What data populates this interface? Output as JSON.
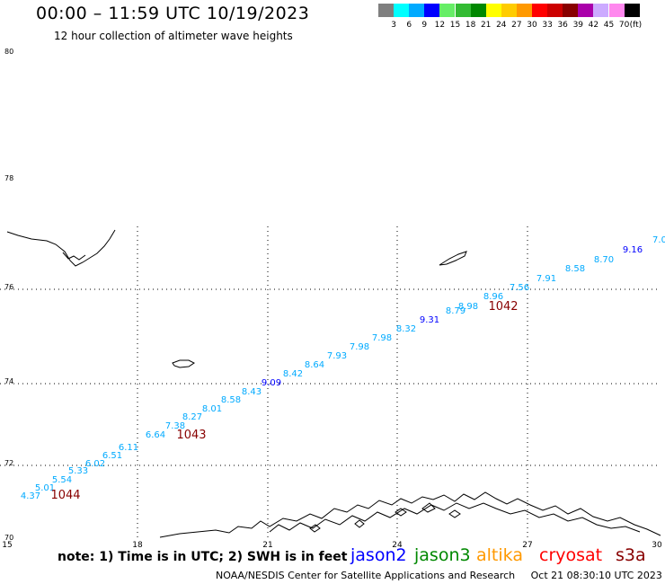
{
  "title": "00:00 – 11:59 UTC 10/19/2023",
  "subtitle": "12 hour collection of altimeter wave heights",
  "color_scale": {
    "colors": [
      "#7f7f7f",
      "#00ffff",
      "#00aaff",
      "#0000ff",
      "#66ee66",
      "#33bb33",
      "#008800",
      "#ffff00",
      "#ffcc00",
      "#ff9900",
      "#ff0000",
      "#cc0000",
      "#880000",
      "#aa00aa",
      "#ccaaff",
      "#ff88ee",
      "#000000"
    ],
    "labels": [
      "3",
      "6",
      "9",
      "12",
      "15",
      "18",
      "21",
      "24",
      "27",
      "30",
      "33",
      "36",
      "39",
      "42",
      "45",
      "70"
    ],
    "unit": "(ft)"
  },
  "map": {
    "lat_labels": [
      "80",
      "78",
      "76",
      "74",
      "72",
      "70"
    ],
    "lon_labels": [
      "15",
      "18",
      "21",
      "24",
      "27",
      "30"
    ],
    "swh_color_default": "#00aaff",
    "swh_color_high": "#0000ff",
    "id_color": "#880000",
    "swh_labels": [
      {
        "text": "4.37",
        "color": "#00aaff"
      },
      {
        "text": "5.01",
        "color": "#00aaff"
      },
      {
        "text": "5.54",
        "color": "#00aaff"
      },
      {
        "text": "5.33",
        "color": "#00aaff"
      },
      {
        "text": "6.02",
        "color": "#00aaff"
      },
      {
        "text": "6.51",
        "color": "#00aaff"
      },
      {
        "text": "6.11",
        "color": "#00aaff"
      },
      {
        "text": "6.64",
        "color": "#00aaff"
      },
      {
        "text": "7.38",
        "color": "#00aaff"
      },
      {
        "text": "8.27",
        "color": "#00aaff"
      },
      {
        "text": "8.01",
        "color": "#00aaff"
      },
      {
        "text": "8.58",
        "color": "#00aaff"
      },
      {
        "text": "8.43",
        "color": "#00aaff"
      },
      {
        "text": "9.09",
        "color": "#0000ff"
      },
      {
        "text": "8.42",
        "color": "#00aaff"
      },
      {
        "text": "8.64",
        "color": "#00aaff"
      },
      {
        "text": "7.93",
        "color": "#00aaff"
      },
      {
        "text": "7.98",
        "color": "#00aaff"
      },
      {
        "text": "7.98",
        "color": "#00aaff"
      },
      {
        "text": "8.32",
        "color": "#00aaff"
      },
      {
        "text": "9.31",
        "color": "#0000ff"
      },
      {
        "text": "8.79",
        "color": "#00aaff"
      },
      {
        "text": "8.98",
        "color": "#00aaff"
      },
      {
        "text": "8.96",
        "color": "#00aaff"
      },
      {
        "text": "7.56",
        "color": "#00aaff"
      },
      {
        "text": "7.91",
        "color": "#00aaff"
      },
      {
        "text": "8.58",
        "color": "#00aaff"
      },
      {
        "text": "8.70",
        "color": "#00aaff"
      },
      {
        "text": "9.16",
        "color": "#0000ff"
      },
      {
        "text": "7.0",
        "color": "#00aaff"
      }
    ],
    "pass_ids": [
      "1044",
      "1043",
      "1042"
    ]
  },
  "note": "note: 1) Time is in UTC; 2) SWH is in feet",
  "satellites": [
    {
      "name": "jason2",
      "color": "#0000ff"
    },
    {
      "name": "jason3",
      "color": "#008800"
    },
    {
      "name": "altika",
      "color": "#ff9900"
    },
    {
      "name": "cryosat",
      "color": "#ff0000"
    },
    {
      "name": "s3a",
      "color": "#880000"
    }
  ],
  "footer": {
    "source": "NOAA/NESDIS Center for Satellite Applications and Research",
    "timestamp": "Oct 21 08:30:10 UTC 2023"
  }
}
